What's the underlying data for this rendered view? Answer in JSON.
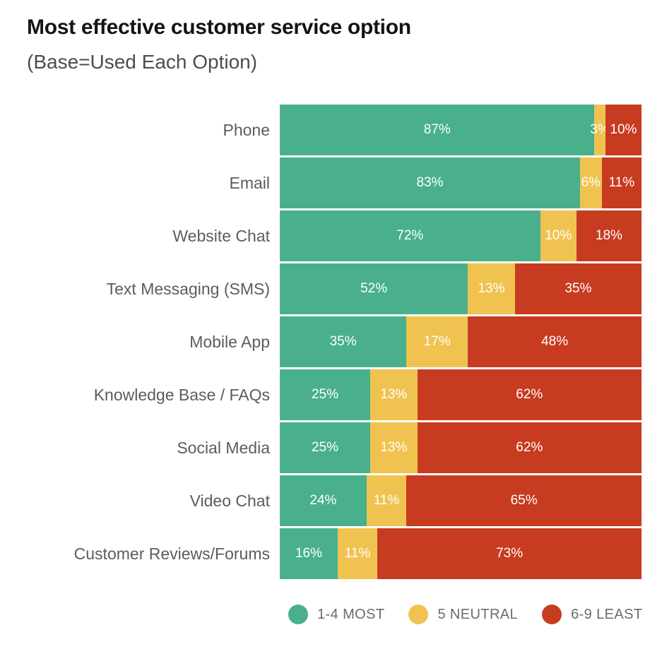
{
  "header": {
    "title": "Most effective customer service option",
    "subtitle": "(Base=Used Each Option)"
  },
  "chart_data": {
    "type": "bar",
    "orientation": "horizontal",
    "stacked": true,
    "title": "Most effective customer service option",
    "subtitle": "(Base=Used Each Option)",
    "xlim": [
      0,
      100
    ],
    "value_suffix": "%",
    "grid": false,
    "legend_position": "bottom",
    "categories": [
      "Phone",
      "Email",
      "Website Chat",
      "Text Messaging (SMS)",
      "Mobile App",
      "Knowledge Base / FAQs",
      "Social Media",
      "Video Chat",
      "Customer Reviews/Forums"
    ],
    "series": [
      {
        "name": "1-4 MOST",
        "color": "#49B08B",
        "values": [
          87,
          83,
          72,
          52,
          35,
          25,
          25,
          24,
          16
        ]
      },
      {
        "name": "5 NEUTRAL",
        "color": "#F0C350",
        "values": [
          3,
          6,
          10,
          13,
          17,
          13,
          13,
          11,
          11
        ]
      },
      {
        "name": "6-9 LEAST",
        "color": "#C73B21",
        "values": [
          10,
          11,
          18,
          35,
          48,
          62,
          62,
          65,
          73
        ]
      }
    ]
  }
}
